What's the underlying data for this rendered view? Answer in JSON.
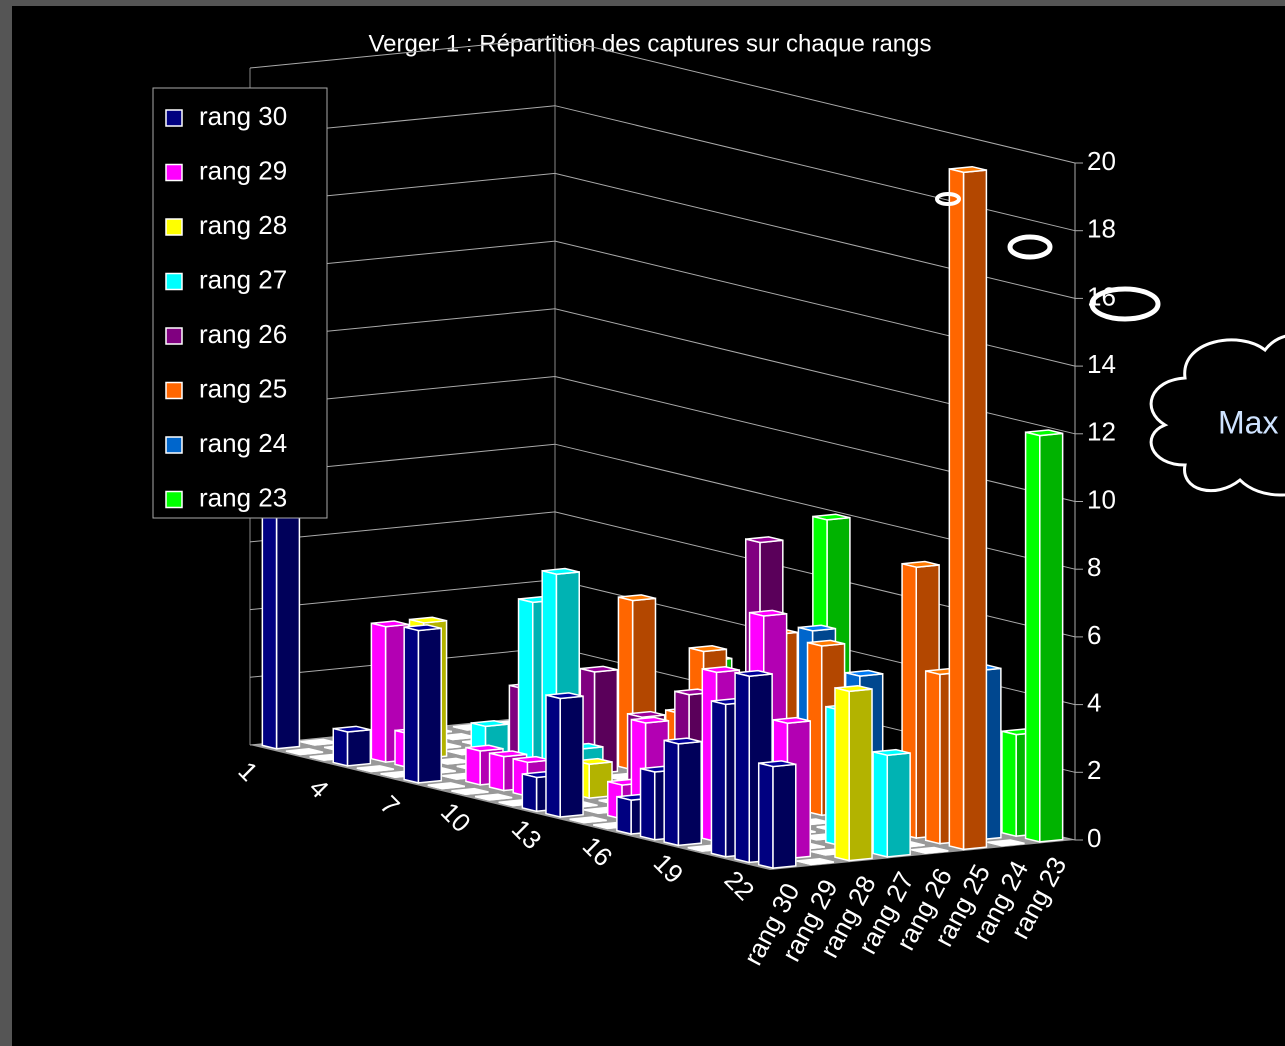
{
  "chart_data": {
    "type": "bar3d",
    "title": "Verger 1 : Répartition des captures sur chaque rangs",
    "annotation": "Max",
    "categories": [
      "1",
      null,
      null,
      "4",
      null,
      null,
      "7",
      null,
      null,
      "10",
      null,
      null,
      "13",
      null,
      null,
      "16",
      null,
      null,
      "19",
      null,
      null,
      "22"
    ],
    "ylim": [
      0,
      20
    ],
    "yticks": [
      0,
      2,
      4,
      6,
      8,
      10,
      12,
      14,
      16,
      18,
      20
    ],
    "grid": true,
    "series": [
      {
        "name": "rang 30",
        "color": "#000080",
        "values": [
          7,
          0,
          0,
          1,
          0,
          0,
          4.5,
          0,
          0,
          0,
          0,
          1,
          3.5,
          0,
          0,
          1,
          2,
          3,
          0,
          4.5,
          5.5,
          3
        ]
      },
      {
        "name": "rang 29",
        "color": "#ff00ff",
        "values": [
          0,
          0,
          0,
          4,
          1,
          0,
          0,
          1,
          1,
          1,
          0,
          0,
          0,
          1,
          3,
          0,
          0,
          5,
          0,
          7,
          4,
          0
        ]
      },
      {
        "name": "rang 28",
        "color": "#ffff00",
        "values": [
          0,
          0,
          0,
          4,
          0,
          0,
          0,
          0,
          0,
          0,
          1,
          0,
          0,
          0,
          0,
          0,
          0,
          3,
          0,
          0,
          0,
          5
        ]
      },
      {
        "name": "rang 27",
        "color": "#00ffff",
        "values": [
          0,
          0,
          0,
          0,
          1,
          0,
          5,
          6,
          1,
          0,
          0,
          1,
          1,
          0,
          1,
          3,
          0,
          0,
          0,
          4,
          0,
          3
        ]
      },
      {
        "name": "rang 26",
        "color": "#800080",
        "values": [
          0,
          0,
          0,
          0,
          2,
          0,
          0,
          3,
          0,
          2,
          0,
          3,
          0,
          1,
          8,
          0,
          0,
          0,
          0,
          0,
          0,
          0
        ]
      },
      {
        "name": "rang 25",
        "color": "#ff6600",
        "values": [
          0,
          0,
          0,
          0,
          0,
          0,
          0,
          5,
          0,
          2,
          4,
          0,
          0,
          5,
          0,
          5,
          0,
          0,
          0,
          8,
          5,
          20
        ]
      },
      {
        "name": "rang 24",
        "color": "#0066cc",
        "values": [
          0,
          0,
          0,
          0,
          0,
          0,
          0,
          0,
          0,
          0,
          0,
          0,
          0,
          5,
          0,
          4,
          0,
          0,
          0,
          0,
          5,
          0
        ]
      },
      {
        "name": "rang 23",
        "color": "#00ff00",
        "values": [
          0,
          0,
          0,
          0,
          0,
          0,
          0,
          3,
          0,
          0,
          0,
          0,
          8,
          0,
          0,
          0,
          0,
          0,
          0,
          0,
          3,
          12
        ]
      }
    ]
  }
}
